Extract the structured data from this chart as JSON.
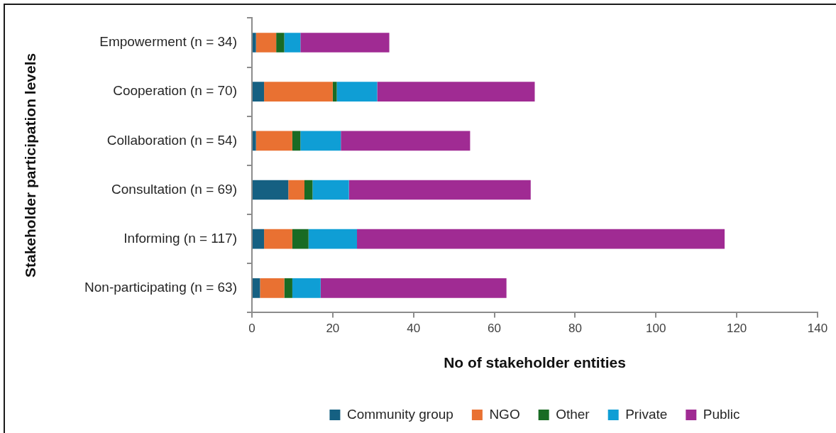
{
  "chart_data": {
    "type": "bar",
    "orientation": "horizontal",
    "stacked": true,
    "xlabel": "No of stakeholder entities",
    "ylabel": "Stakeholder participation levels",
    "categories": [
      "Empowerment (n = 34)",
      "Cooperation (n = 70)",
      "Collaboration (n = 54)",
      "Consultation (n = 69)",
      "Informing (n = 117)",
      "Non-participating (n = 63)"
    ],
    "series": [
      {
        "name": "Community group",
        "color": "#156082",
        "values": [
          1,
          3,
          1,
          9,
          3,
          2
        ]
      },
      {
        "name": "NGO",
        "color": "#e97132",
        "values": [
          5,
          17,
          9,
          4,
          7,
          6
        ]
      },
      {
        "name": "Other",
        "color": "#196b24",
        "values": [
          2,
          1,
          2,
          2,
          4,
          2
        ]
      },
      {
        "name": "Private",
        "color": "#0f9ed5",
        "values": [
          4,
          10,
          10,
          9,
          12,
          7
        ]
      },
      {
        "name": "Public",
        "color": "#a02b93",
        "values": [
          22,
          39,
          32,
          45,
          91,
          46
        ]
      }
    ],
    "xlim": [
      0,
      140
    ],
    "xticks": [
      0,
      20,
      40,
      60,
      80,
      100,
      120,
      140
    ],
    "legend": "bottom"
  }
}
